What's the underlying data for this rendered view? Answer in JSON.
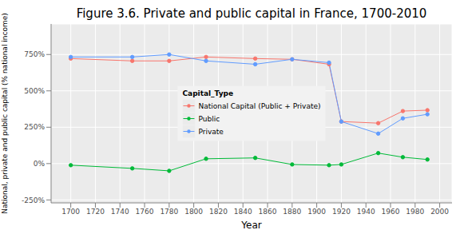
{
  "chart_data": {
    "type": "line",
    "title": "Figure 3.6. Private and public capital in France, 1700-2010",
    "x_label": "Year",
    "y_label": "National, private and public capital (% national income)",
    "legend_title": "Capital_Type",
    "legend": "center",
    "grid": true,
    "marker": "circle",
    "x": [
      1700,
      1750,
      1780,
      1810,
      1850,
      1880,
      1910,
      1920,
      1950,
      1970,
      1990
    ],
    "series": [
      {
        "name": "National Capital (Public + Private)",
        "color": "#F8766D",
        "values": [
          722,
          706,
          706,
          733,
          722,
          717,
          683,
          289,
          278,
          361,
          367
        ]
      },
      {
        "name": "Public",
        "color": "#00BA38",
        "values": [
          -11,
          -33,
          -50,
          33,
          39,
          -6,
          -11,
          -6,
          72,
          44,
          28
        ]
      },
      {
        "name": "Private",
        "color": "#619CFF",
        "values": [
          733,
          733,
          750,
          706,
          683,
          717,
          694,
          289,
          206,
          311,
          339
        ]
      }
    ],
    "xlim": [
      1684,
      2010
    ],
    "xticks": [
      1700,
      1720,
      1740,
      1760,
      1780,
      1800,
      1820,
      1840,
      1860,
      1880,
      1900,
      1920,
      1940,
      1960,
      1980,
      2000
    ],
    "ylim": [
      -270,
      960
    ],
    "yticks": [
      {
        "value": -250,
        "label": "-250%"
      },
      {
        "value": 0,
        "label": "0%"
      },
      {
        "value": 250,
        "label": "250%"
      },
      {
        "value": 500,
        "label": "500%"
      },
      {
        "value": 750,
        "label": "750%"
      }
    ]
  }
}
